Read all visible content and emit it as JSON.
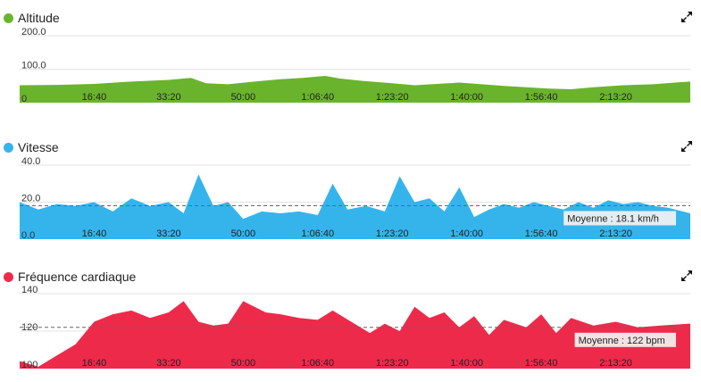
{
  "charts": [
    {
      "id": "altitude",
      "title": "Altitude",
      "color": "#6ab42d",
      "ylim": [
        0,
        200
      ],
      "y_ticks": [
        {
          "v": 0,
          "label": "0"
        },
        {
          "v": 100,
          "label": "100.0"
        },
        {
          "v": 200,
          "label": "200.0"
        }
      ],
      "average_label": "",
      "average": null
    },
    {
      "id": "vitesse",
      "title": "Vitesse",
      "color": "#35b4ec",
      "ylim": [
        0,
        40
      ],
      "y_ticks": [
        {
          "v": 0,
          "label": "0.0"
        },
        {
          "v": 20,
          "label": "20.0"
        },
        {
          "v": 40,
          "label": "40.0"
        }
      ],
      "average_label": "Moyenne : 18.1 km/h",
      "average": 18.1
    },
    {
      "id": "frequence",
      "title": "Fréquence cardiaque",
      "color": "#ee2a4b",
      "ylim": [
        100,
        140
      ],
      "y_ticks": [
        {
          "v": 100,
          "label": "100"
        },
        {
          "v": 120,
          "label": "120"
        },
        {
          "v": 140,
          "label": "140"
        }
      ],
      "average_label": "Moyenne : 122 bpm",
      "average": 122
    }
  ],
  "x_tick_labels": [
    "16:40",
    "33:20",
    "50:00",
    "1:06:40",
    "1:23:20",
    "1:40:00",
    "1:56:40",
    "2:13:20"
  ],
  "chart_data": [
    {
      "type": "area",
      "title": "Altitude",
      "x_unit": "elapsed seconds",
      "x": [
        0,
        500,
        1000,
        1500,
        2000,
        2300,
        2500,
        2800,
        3200,
        3500,
        3800,
        4100,
        4300,
        4600,
        5000,
        5300,
        5600,
        5900,
        6200,
        6500,
        6800,
        7100,
        7400,
        7700,
        8100,
        8500,
        8800,
        9000
      ],
      "y": [
        52,
        53,
        56,
        63,
        68,
        74,
        58,
        55,
        64,
        70,
        74,
        80,
        72,
        65,
        58,
        52,
        56,
        60,
        55,
        50,
        46,
        42,
        40,
        46,
        52,
        55,
        60,
        63
      ],
      "ylim": [
        0,
        200
      ]
    },
    {
      "type": "area",
      "title": "Vitesse",
      "x_unit": "elapsed seconds",
      "x": [
        0,
        250,
        500,
        750,
        1000,
        1250,
        1500,
        1750,
        2000,
        2200,
        2400,
        2600,
        2800,
        3000,
        3250,
        3500,
        3750,
        4000,
        4200,
        4400,
        4650,
        4900,
        5100,
        5300,
        5500,
        5700,
        5900,
        6100,
        6300,
        6500,
        6700,
        6900,
        7100,
        7300,
        7500,
        7700,
        7900,
        8100,
        8300,
        8500,
        8700,
        9000
      ],
      "y": [
        20,
        16,
        19,
        18,
        20,
        15,
        22,
        18,
        20,
        14,
        35,
        18,
        20,
        11,
        15,
        14,
        15,
        13,
        30,
        16,
        18,
        15,
        34,
        20,
        22,
        15,
        28,
        12,
        16,
        19,
        17,
        20,
        18,
        16,
        20,
        17,
        21,
        19,
        20,
        18,
        17,
        14
      ],
      "average": 18.1,
      "ylim": [
        0,
        40
      ]
    },
    {
      "type": "area",
      "title": "Fréquence cardiaque",
      "x_unit": "elapsed seconds",
      "x": [
        0,
        250,
        500,
        750,
        1000,
        1250,
        1500,
        1750,
        2000,
        2200,
        2400,
        2600,
        2800,
        3000,
        3300,
        3500,
        3750,
        4000,
        4200,
        4450,
        4700,
        4900,
        5100,
        5300,
        5500,
        5700,
        5900,
        6100,
        6300,
        6500,
        6800,
        7000,
        7200,
        7400,
        7700,
        8000,
        8300,
        8600,
        9000
      ],
      "y": [
        104,
        101,
        107,
        113,
        125,
        129,
        131,
        127,
        130,
        136,
        125,
        123,
        124,
        136,
        130,
        129,
        127,
        126,
        131,
        125,
        119,
        124,
        120,
        133,
        127,
        130,
        122,
        128,
        118,
        126,
        122,
        129,
        119,
        127,
        123,
        125,
        122,
        123,
        124
      ],
      "average": 122,
      "ylim": [
        100,
        140
      ]
    }
  ]
}
